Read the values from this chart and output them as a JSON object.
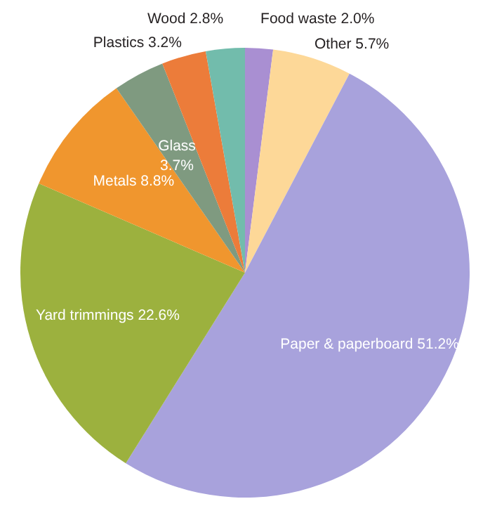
{
  "chart_data": {
    "type": "pie",
    "categories": [
      "Food waste",
      "Other",
      "Paper & paperboard",
      "Yard trimmings",
      "Metals",
      "Glass",
      "Plastics",
      "Wood"
    ],
    "values": [
      2.0,
      5.7,
      51.2,
      22.6,
      8.8,
      3.7,
      3.2,
      2.8
    ],
    "value_labels": [
      "2.0%",
      "5.7%",
      "51.2%",
      "22.6%",
      "8.8%",
      "3.7%",
      "3.2%",
      "2.8%"
    ],
    "colors": [
      "#a98fd2",
      "#fdd898",
      "#a8a2dc",
      "#9cb13e",
      "#f0962e",
      "#7f9a80",
      "#ec7c3a",
      "#72bcac"
    ],
    "legend": false
  }
}
